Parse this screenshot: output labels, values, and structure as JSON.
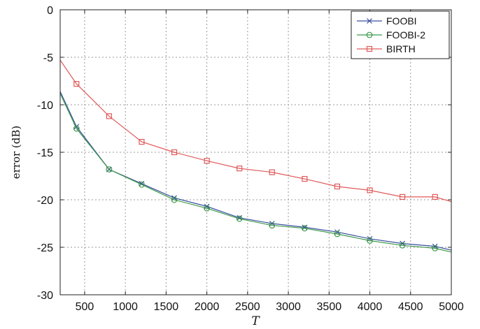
{
  "chart_data": {
    "type": "line",
    "xlabel": "T",
    "ylabel": "error (dB)",
    "xlim": [
      200,
      5000
    ],
    "ylim": [
      -30,
      0
    ],
    "xticks": [
      500,
      1000,
      1500,
      2000,
      2500,
      3000,
      3500,
      4000,
      4500,
      5000
    ],
    "yticks": [
      0,
      -5,
      -10,
      -15,
      -20,
      -25,
      -30
    ],
    "grid": true,
    "legend_position": "top-right",
    "series": [
      {
        "name": "FOOBI",
        "color": "#3a4fa0",
        "marker": "x",
        "line_x": [
          200,
          400,
          800,
          1200,
          1600,
          2000,
          2400,
          2800,
          3200,
          3600,
          4000,
          4400,
          4800,
          5000
        ],
        "line_y": [
          -8.6,
          -12.3,
          -16.8,
          -18.3,
          -19.8,
          -20.7,
          -21.9,
          -22.5,
          -22.9,
          -23.4,
          -24.1,
          -24.6,
          -24.9,
          -25.3
        ],
        "marker_x": [
          400,
          800,
          1200,
          1600,
          2000,
          2400,
          2800,
          3200,
          3600,
          4000,
          4400,
          4800
        ],
        "marker_y": [
          -12.3,
          -16.8,
          -18.3,
          -19.8,
          -20.7,
          -21.9,
          -22.5,
          -22.9,
          -23.4,
          -24.1,
          -24.6,
          -24.9
        ]
      },
      {
        "name": "FOOBI-2",
        "color": "#3e9a4a",
        "marker": "o",
        "line_x": [
          200,
          400,
          800,
          1200,
          1600,
          2000,
          2400,
          2800,
          3200,
          3600,
          4000,
          4400,
          4800,
          5000
        ],
        "line_y": [
          -8.8,
          -12.5,
          -16.8,
          -18.4,
          -20.0,
          -20.9,
          -22.0,
          -22.7,
          -23.0,
          -23.6,
          -24.3,
          -24.8,
          -25.1,
          -25.5
        ],
        "marker_x": [
          400,
          800,
          1200,
          1600,
          2000,
          2400,
          2800,
          3200,
          3600,
          4000,
          4400,
          4800
        ],
        "marker_y": [
          -12.5,
          -16.8,
          -18.4,
          -20.0,
          -20.9,
          -22.0,
          -22.7,
          -23.0,
          -23.6,
          -24.3,
          -24.8,
          -25.1
        ]
      },
      {
        "name": "BIRTH",
        "color": "#e05a5a",
        "marker": "s",
        "line_x": [
          200,
          400,
          800,
          1200,
          1600,
          2000,
          2400,
          2800,
          3200,
          3600,
          4000,
          4400,
          4800,
          5000
        ],
        "line_y": [
          -5.3,
          -7.8,
          -11.2,
          -13.9,
          -15.0,
          -15.9,
          -16.7,
          -17.1,
          -17.8,
          -18.6,
          -19.0,
          -19.7,
          -19.7,
          -20.2
        ],
        "marker_x": [
          400,
          800,
          1200,
          1600,
          2000,
          2400,
          2800,
          3200,
          3600,
          4000,
          4400,
          4800
        ],
        "marker_y": [
          -7.8,
          -11.2,
          -13.9,
          -15.0,
          -15.9,
          -16.7,
          -17.1,
          -17.8,
          -18.6,
          -19.0,
          -19.7,
          -19.7
        ]
      }
    ]
  }
}
